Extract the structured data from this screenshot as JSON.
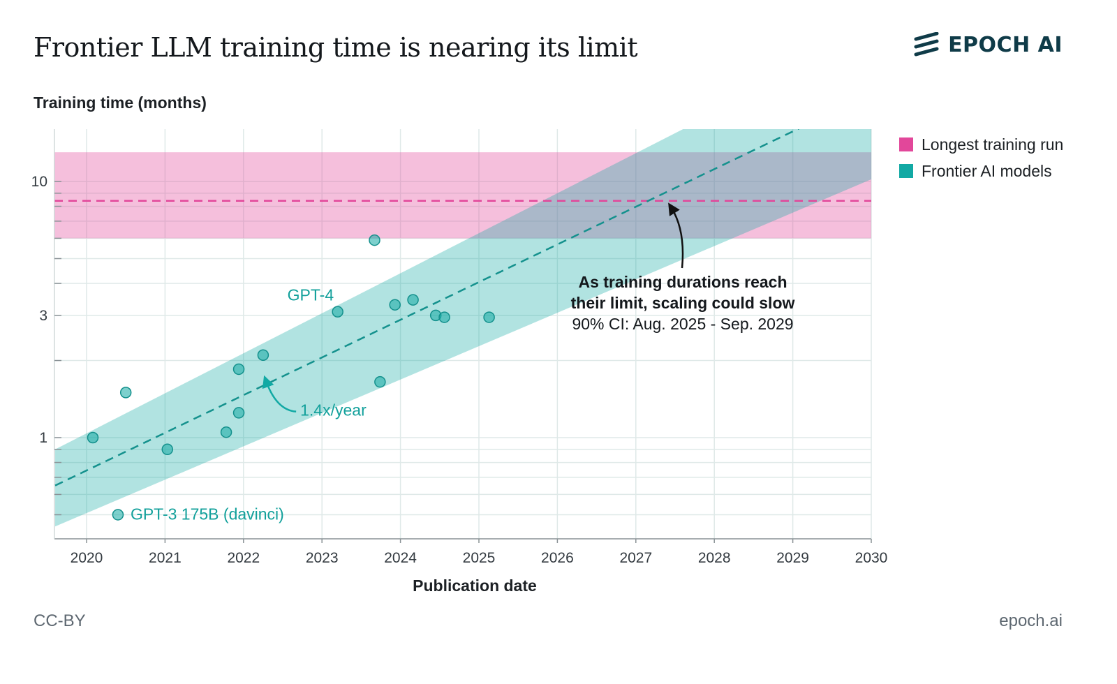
{
  "header": {
    "title": "Frontier LLM training time is nearing its limit",
    "brand": "EPOCH AI"
  },
  "footer": {
    "license": "CC-BY",
    "site": "epoch.ai"
  },
  "legend": {
    "items": [
      {
        "label": "Longest training run",
        "color": "#e2479a"
      },
      {
        "label": "Frontier AI models",
        "color": "#12a9a4"
      }
    ]
  },
  "chart_data": {
    "type": "scatter",
    "title": "Frontier LLM training time is nearing its limit",
    "xlabel": "Publication date",
    "ylabel": "Training time (months)",
    "y_scale": "log",
    "xlim": [
      2019.6,
      2030
    ],
    "ylim": [
      0.4,
      16
    ],
    "x_ticks": [
      "2020",
      "2021",
      "2022",
      "2023",
      "2024",
      "2025",
      "2026",
      "2027",
      "2028",
      "2029",
      "2030"
    ],
    "y_ticks": [
      1,
      3,
      10
    ],
    "grid": true,
    "legend_position": "right",
    "series": [
      {
        "name": "Frontier AI models",
        "color": "#12a9a4",
        "points": [
          {
            "x": 2020.08,
            "y": 1.0
          },
          {
            "x": 2020.4,
            "y": 0.5,
            "label": "GPT-3 175B (davinci)"
          },
          {
            "x": 2020.5,
            "y": 1.5
          },
          {
            "x": 2021.03,
            "y": 0.9
          },
          {
            "x": 2021.78,
            "y": 1.05
          },
          {
            "x": 2021.94,
            "y": 1.25
          },
          {
            "x": 2021.94,
            "y": 1.85
          },
          {
            "x": 2022.25,
            "y": 2.1
          },
          {
            "x": 2023.2,
            "y": 3.1,
            "label": "GPT-4"
          },
          {
            "x": 2023.67,
            "y": 5.9
          },
          {
            "x": 2023.74,
            "y": 1.65
          },
          {
            "x": 2023.93,
            "y": 3.3
          },
          {
            "x": 2024.16,
            "y": 3.45
          },
          {
            "x": 2024.45,
            "y": 3.0
          },
          {
            "x": 2024.56,
            "y": 2.95
          },
          {
            "x": 2025.13,
            "y": 2.95
          }
        ]
      }
    ],
    "trend": {
      "label": "1.4x/year",
      "line": [
        [
          2019.6,
          0.65
        ],
        [
          2030,
          22
        ]
      ],
      "ci_upper": [
        [
          2019.6,
          0.9
        ],
        [
          2027.6,
          16
        ]
      ],
      "ci_lower": [
        [
          2019.6,
          0.45
        ],
        [
          2030,
          10.2
        ]
      ],
      "color": "#12a9a4"
    },
    "limit_band": {
      "name": "Longest training run",
      "value": 8.4,
      "range": [
        6.0,
        13.0
      ],
      "color": "#e2479a"
    },
    "annotation": {
      "lines": [
        "As training durations reach",
        "their limit, scaling could slow",
        "90% CI: Aug. 2025 - Sep. 2029"
      ],
      "x": 2027.4,
      "y": 8.4
    }
  }
}
